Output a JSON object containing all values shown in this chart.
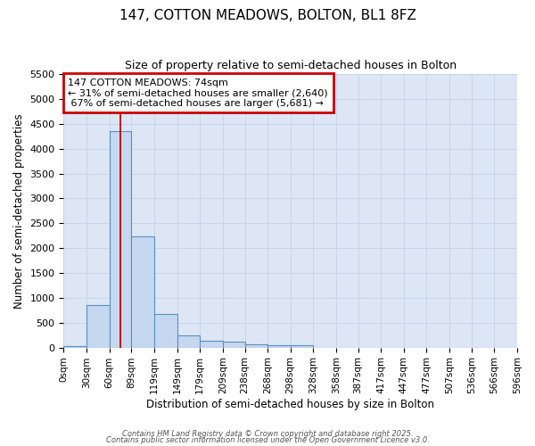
{
  "title_line1": "147, COTTON MEADOWS, BOLTON, BL1 8FZ",
  "title_line2": "Size of property relative to semi-detached houses in Bolton",
  "xlabel": "Distribution of semi-detached houses by size in Bolton",
  "ylabel": "Number of semi-detached properties",
  "property_size": 74,
  "property_label": "147 COTTON MEADOWS: 74sqm",
  "pct_smaller": 31,
  "pct_larger": 67,
  "num_smaller": 2640,
  "num_larger": 5681,
  "bin_edges": [
    0,
    30,
    60,
    89,
    119,
    149,
    179,
    209,
    238,
    268,
    298,
    328,
    358,
    387,
    417,
    447,
    477,
    507,
    536,
    566,
    596
  ],
  "bin_labels": [
    "0sqm",
    "30sqm",
    "60sqm",
    "89sqm",
    "119sqm",
    "149sqm",
    "179sqm",
    "209sqm",
    "238sqm",
    "268sqm",
    "298sqm",
    "328sqm",
    "358sqm",
    "387sqm",
    "417sqm",
    "447sqm",
    "477sqm",
    "507sqm",
    "536sqm",
    "566sqm",
    "596sqm"
  ],
  "bar_heights": [
    30,
    850,
    4350,
    2240,
    670,
    250,
    130,
    110,
    60,
    55,
    45,
    0,
    0,
    0,
    0,
    0,
    0,
    0,
    0,
    0
  ],
  "bar_color": "#c5d8f0",
  "bar_edge_color": "#5a8fc2",
  "grid_color": "#c8d4e8",
  "plot_bg_color": "#dce6f5",
  "fig_bg_color": "#ffffff",
  "red_line_color": "#cc0000",
  "annotation_box_color": "#cc0000",
  "ylim": [
    0,
    5500
  ],
  "yticks": [
    0,
    500,
    1000,
    1500,
    2000,
    2500,
    3000,
    3500,
    4000,
    4500,
    5000,
    5500
  ],
  "footer_line1": "Contains HM Land Registry data © Crown copyright and database right 2025.",
  "footer_line2": "Contains public sector information licensed under the Open Government Licence v3.0."
}
